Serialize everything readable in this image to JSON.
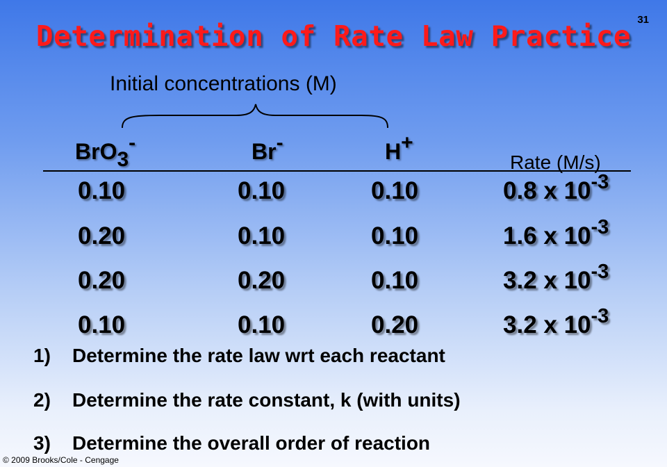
{
  "slide_number": "31",
  "title": "Determination of Rate Law Practice",
  "subtitle": "Initial concentrations (M)",
  "headers": {
    "bro3": {
      "base": "BrO",
      "sub": "3",
      "sup": "-"
    },
    "br": {
      "base": "Br",
      "sup": "-"
    },
    "h": {
      "base": "H",
      "sup": "+"
    },
    "rate": "Rate (M/s)"
  },
  "rows": [
    {
      "bro3": "0.10",
      "br": "0.10",
      "h": "0.10",
      "rate": "0.8 x 10",
      "exp": "-3"
    },
    {
      "bro3": "0.20",
      "br": "0.10",
      "h": "0.10",
      "rate": "1.6 x 10",
      "exp": "-3"
    },
    {
      "bro3": "0.20",
      "br": "0.20",
      "h": "0.10",
      "rate": "3.2 x 10",
      "exp": "-3"
    },
    {
      "bro3": "0.10",
      "br": "0.10",
      "h": "0.20",
      "rate": "3.2 x 10",
      "exp": "-3"
    }
  ],
  "questions": [
    {
      "num": "1)",
      "text": "Determine the rate law wrt each reactant"
    },
    {
      "num": "2)",
      "text": "Determine the rate constant, k (with units)"
    },
    {
      "num": "3)",
      "text": "Determine the overall order of reaction"
    }
  ],
  "copyright": "© 2009 Brooks/Cole - Cengage",
  "colors": {
    "title": "#ff1a1a",
    "bg_top": "#3f78e8",
    "bg_bottom": "#f6f8fe"
  }
}
